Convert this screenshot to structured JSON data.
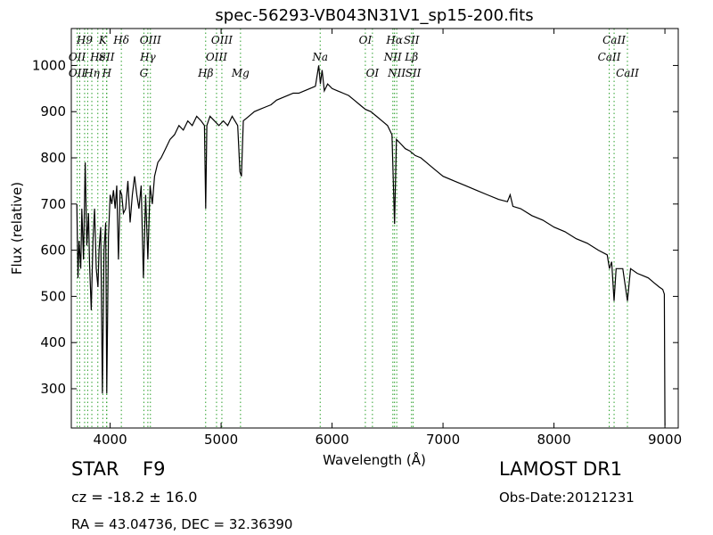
{
  "chart_data": {
    "type": "line",
    "title": "spec-56293-VB043N31V1_sp15-200.fits",
    "xlabel": "Wavelength (Å)",
    "ylabel": "Flux (relative)",
    "xlim": [
      3650,
      9120
    ],
    "ylim": [
      215,
      1080
    ],
    "xticks": [
      4000,
      5000,
      6000,
      7000,
      8000,
      9000
    ],
    "yticks": [
      300,
      400,
      500,
      600,
      700,
      800,
      900,
      1000
    ],
    "grid": false,
    "line_color": "#000000",
    "marker_color": "#2ca02c",
    "series": [
      {
        "values": [
          [
            3700,
            700
          ],
          [
            3710,
            540
          ],
          [
            3720,
            620
          ],
          [
            3735,
            560
          ],
          [
            3745,
            690
          ],
          [
            3760,
            580
          ],
          [
            3775,
            790
          ],
          [
            3790,
            610
          ],
          [
            3805,
            680
          ],
          [
            3815,
            570
          ],
          [
            3830,
            470
          ],
          [
            3845,
            620
          ],
          [
            3860,
            690
          ],
          [
            3875,
            560
          ],
          [
            3890,
            520
          ],
          [
            3900,
            600
          ],
          [
            3915,
            650
          ],
          [
            3930,
            290
          ],
          [
            3945,
            600
          ],
          [
            3960,
            660
          ],
          [
            3970,
            290
          ],
          [
            3985,
            630
          ],
          [
            4000,
            720
          ],
          [
            4015,
            700
          ],
          [
            4030,
            730
          ],
          [
            4045,
            690
          ],
          [
            4060,
            740
          ],
          [
            4075,
            580
          ],
          [
            4090,
            730
          ],
          [
            4105,
            720
          ],
          [
            4120,
            680
          ],
          [
            4140,
            690
          ],
          [
            4160,
            750
          ],
          [
            4180,
            660
          ],
          [
            4200,
            720
          ],
          [
            4220,
            760
          ],
          [
            4240,
            720
          ],
          [
            4260,
            690
          ],
          [
            4280,
            740
          ],
          [
            4300,
            540
          ],
          [
            4320,
            720
          ],
          [
            4340,
            580
          ],
          [
            4360,
            740
          ],
          [
            4380,
            700
          ],
          [
            4400,
            760
          ],
          [
            4430,
            790
          ],
          [
            4460,
            800
          ],
          [
            4500,
            820
          ],
          [
            4540,
            840
          ],
          [
            4580,
            850
          ],
          [
            4620,
            870
          ],
          [
            4660,
            860
          ],
          [
            4700,
            880
          ],
          [
            4740,
            870
          ],
          [
            4780,
            890
          ],
          [
            4820,
            880
          ],
          [
            4850,
            870
          ],
          [
            4861,
            690
          ],
          [
            4872,
            870
          ],
          [
            4900,
            890
          ],
          [
            4940,
            880
          ],
          [
            4980,
            870
          ],
          [
            5020,
            880
          ],
          [
            5060,
            870
          ],
          [
            5100,
            890
          ],
          [
            5150,
            870
          ],
          [
            5170,
            770
          ],
          [
            5183,
            760
          ],
          [
            5200,
            880
          ],
          [
            5250,
            890
          ],
          [
            5300,
            900
          ],
          [
            5350,
            905
          ],
          [
            5400,
            910
          ],
          [
            5450,
            915
          ],
          [
            5500,
            925
          ],
          [
            5550,
            930
          ],
          [
            5600,
            935
          ],
          [
            5650,
            940
          ],
          [
            5700,
            940
          ],
          [
            5750,
            945
          ],
          [
            5800,
            950
          ],
          [
            5850,
            955
          ],
          [
            5880,
            1000
          ],
          [
            5895,
            960
          ],
          [
            5910,
            990
          ],
          [
            5930,
            945
          ],
          [
            5960,
            960
          ],
          [
            6000,
            950
          ],
          [
            6050,
            945
          ],
          [
            6100,
            940
          ],
          [
            6150,
            935
          ],
          [
            6200,
            925
          ],
          [
            6250,
            915
          ],
          [
            6300,
            905
          ],
          [
            6350,
            900
          ],
          [
            6400,
            890
          ],
          [
            6450,
            880
          ],
          [
            6500,
            870
          ],
          [
            6540,
            850
          ],
          [
            6563,
            657
          ],
          [
            6580,
            840
          ],
          [
            6620,
            830
          ],
          [
            6660,
            820
          ],
          [
            6700,
            815
          ],
          [
            6750,
            805
          ],
          [
            6800,
            800
          ],
          [
            6850,
            790
          ],
          [
            6900,
            780
          ],
          [
            6950,
            770
          ],
          [
            7000,
            760
          ],
          [
            7100,
            750
          ],
          [
            7200,
            740
          ],
          [
            7300,
            730
          ],
          [
            7400,
            720
          ],
          [
            7500,
            710
          ],
          [
            7580,
            705
          ],
          [
            7605,
            720
          ],
          [
            7630,
            695
          ],
          [
            7700,
            690
          ],
          [
            7800,
            675
          ],
          [
            7900,
            665
          ],
          [
            8000,
            650
          ],
          [
            8100,
            640
          ],
          [
            8200,
            625
          ],
          [
            8300,
            615
          ],
          [
            8400,
            600
          ],
          [
            8480,
            590
          ],
          [
            8500,
            560
          ],
          [
            8520,
            575
          ],
          [
            8542,
            490
          ],
          [
            8560,
            560
          ],
          [
            8620,
            560
          ],
          [
            8662,
            490
          ],
          [
            8690,
            560
          ],
          [
            8750,
            550
          ],
          [
            8800,
            545
          ],
          [
            8850,
            540
          ],
          [
            8900,
            530
          ],
          [
            8950,
            520
          ],
          [
            8980,
            515
          ],
          [
            8995,
            505
          ],
          [
            9000,
            220
          ]
        ]
      }
    ],
    "lines": [
      {
        "x": 3703,
        "rows": [
          1,
          2
        ],
        "labels": [
          "OII",
          "OII"
        ]
      },
      {
        "x": 3726,
        "rows": [],
        "labels": []
      },
      {
        "x": 3770,
        "rows": [
          0
        ],
        "labels": [
          "H9"
        ]
      },
      {
        "x": 3798,
        "rows": [],
        "labels": []
      },
      {
        "x": 3835,
        "rows": [
          2
        ],
        "labels": [
          "Hη"
        ]
      },
      {
        "x": 3889,
        "rows": [
          1
        ],
        "labels": [
          "Hϵ"
        ]
      },
      {
        "x": 3934,
        "rows": [
          0
        ],
        "labels": [
          "K"
        ]
      },
      {
        "x": 3968,
        "rows": [
          1
        ],
        "labels": [
          "SII"
        ]
      },
      {
        "x": 3970,
        "rows": [
          2
        ],
        "labels": [
          "H"
        ]
      },
      {
        "x": 4101,
        "rows": [
          0
        ],
        "labels": [
          "Hδ"
        ]
      },
      {
        "x": 4304,
        "rows": [
          2
        ],
        "labels": [
          "G"
        ]
      },
      {
        "x": 4340,
        "rows": [
          1
        ],
        "labels": [
          "Hγ"
        ]
      },
      {
        "x": 4363,
        "rows": [
          0
        ],
        "labels": [
          "OIII"
        ]
      },
      {
        "x": 4861,
        "rows": [
          2
        ],
        "labels": [
          "Hβ"
        ]
      },
      {
        "x": 4959,
        "rows": [
          1
        ],
        "labels": [
          "OIII"
        ]
      },
      {
        "x": 5007,
        "rows": [
          0
        ],
        "labels": [
          "OIII"
        ]
      },
      {
        "x": 5175,
        "rows": [
          2
        ],
        "labels": [
          "Mg"
        ]
      },
      {
        "x": 5893,
        "rows": [
          1
        ],
        "labels": [
          "Na"
        ]
      },
      {
        "x": 6300,
        "rows": [
          0
        ],
        "labels": [
          "OI"
        ]
      },
      {
        "x": 6364,
        "rows": [
          2
        ],
        "labels": [
          "OI"
        ]
      },
      {
        "x": 6548,
        "rows": [
          1
        ],
        "labels": [
          "NII"
        ]
      },
      {
        "x": 6563,
        "rows": [
          0
        ],
        "labels": [
          "Hα"
        ]
      },
      {
        "x": 6583,
        "rows": [
          2
        ],
        "labels": [
          "NII"
        ]
      },
      {
        "x": 6716,
        "rows": [
          0,
          1
        ],
        "labels": [
          "SII",
          "Lβ"
        ]
      },
      {
        "x": 6731,
        "rows": [
          2
        ],
        "labels": [
          "SII"
        ]
      },
      {
        "x": 8498,
        "rows": [
          1
        ],
        "labels": [
          "CaII"
        ]
      },
      {
        "x": 8542,
        "rows": [
          0
        ],
        "labels": [
          "CaII"
        ]
      },
      {
        "x": 8662,
        "rows": [
          2
        ],
        "labels": [
          "CaII"
        ]
      }
    ]
  },
  "info": {
    "class": "STAR",
    "subclass": "F9",
    "cz": "cz = -18.2 ± 16.0",
    "coords": "RA = 43.04736, DEC = 32.36390",
    "release": "LAMOST DR1",
    "obs_date": "Obs-Date:20121231"
  }
}
